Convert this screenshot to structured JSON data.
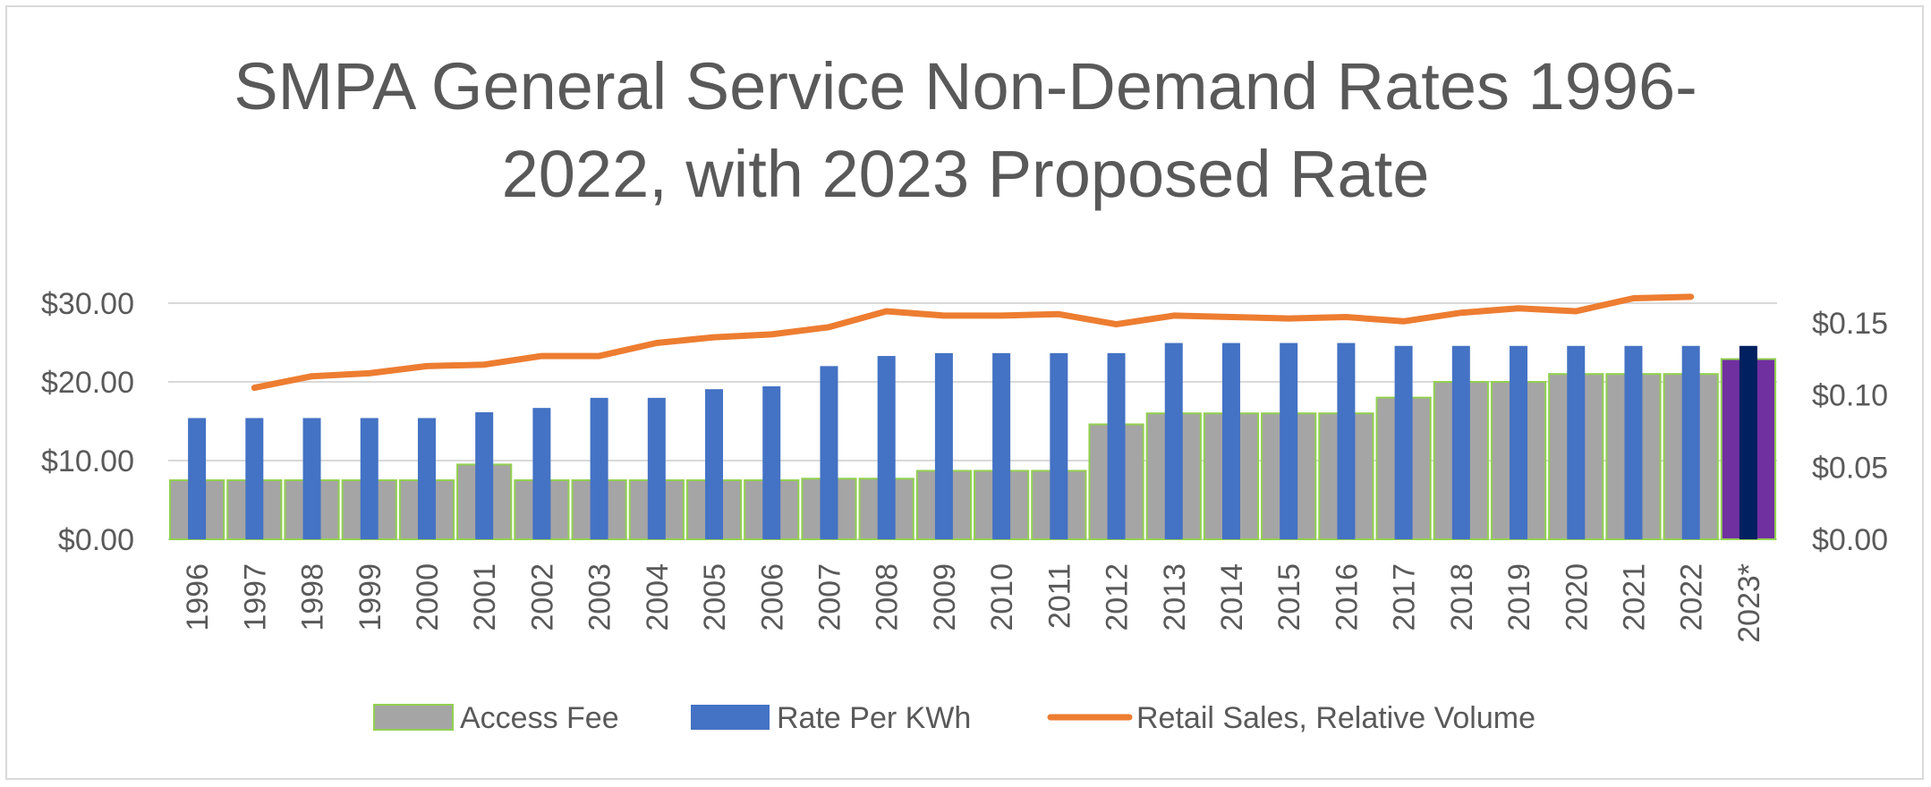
{
  "chart_data": {
    "type": "bar",
    "title_lines": [
      "SMPA General Service Non-Demand Rates 1996-",
      "2022, with 2023 Proposed Rate"
    ],
    "categories": [
      "1996",
      "1997",
      "1998",
      "1999",
      "2000",
      "2001",
      "2002",
      "2003",
      "2004",
      "2005",
      "2006",
      "2007",
      "2008",
      "2009",
      "2010",
      "2011",
      "2012",
      "2013",
      "2014",
      "2015",
      "2016",
      "2017",
      "2018",
      "2019",
      "2020",
      "2021",
      "2022",
      "2023*"
    ],
    "left_axis": {
      "ylim": [
        0,
        30
      ],
      "ticks": [
        0,
        10,
        20,
        30
      ],
      "tick_labels": [
        "$0.00",
        "$10.00",
        "$20.00",
        "$30.00"
      ]
    },
    "right_axis": {
      "ylim": [
        0,
        0.1636
      ],
      "ticks": [
        0,
        0.05,
        0.1,
        0.15
      ],
      "tick_labels": [
        "$0.00",
        "$0.05",
        "$0.10",
        "$0.15"
      ]
    },
    "grid": true,
    "series": [
      {
        "name": "Access Fee",
        "type": "bar",
        "axis": "left",
        "color": "#a5a5a5",
        "edge_color": "#92d050",
        "highlight_color": "#7030a0",
        "highlight_index": 27,
        "values": [
          7.5,
          7.5,
          7.5,
          7.5,
          7.5,
          9.5,
          7.5,
          7.5,
          7.5,
          7.5,
          7.5,
          7.7,
          7.7,
          8.7,
          8.7,
          8.7,
          14.6,
          16.0,
          16.0,
          16.0,
          16.0,
          18.0,
          20.0,
          20.0,
          21.0,
          21.0,
          21.0,
          22.9
        ]
      },
      {
        "name": "Rate Per KWh",
        "type": "bar",
        "axis": "right",
        "color": "#4472c4",
        "highlight_color": "#002060",
        "highlight_index": 27,
        "values": [
          0.084,
          0.084,
          0.084,
          0.084,
          0.084,
          0.088,
          0.091,
          0.098,
          0.098,
          0.104,
          0.106,
          0.12,
          0.127,
          0.129,
          0.129,
          0.129,
          0.129,
          0.136,
          0.136,
          0.136,
          0.136,
          0.134,
          0.134,
          0.134,
          0.134,
          0.134,
          0.134,
          0.134
        ]
      },
      {
        "name": "Retail Sales, Relative Volume",
        "type": "line",
        "axis": "right",
        "color": "#ed7d31",
        "values": [
          null,
          0.105,
          0.113,
          0.115,
          0.12,
          0.121,
          0.127,
          0.127,
          0.136,
          0.14,
          0.142,
          0.147,
          0.158,
          0.155,
          0.155,
          0.156,
          0.149,
          0.155,
          0.154,
          0.153,
          0.154,
          0.151,
          0.157,
          0.16,
          0.158,
          0.167,
          0.168,
          null
        ]
      }
    ],
    "legend": {
      "position": "bottom",
      "items": [
        "Access Fee",
        "Rate Per KWh",
        "Retail Sales, Relative Volume"
      ]
    }
  }
}
